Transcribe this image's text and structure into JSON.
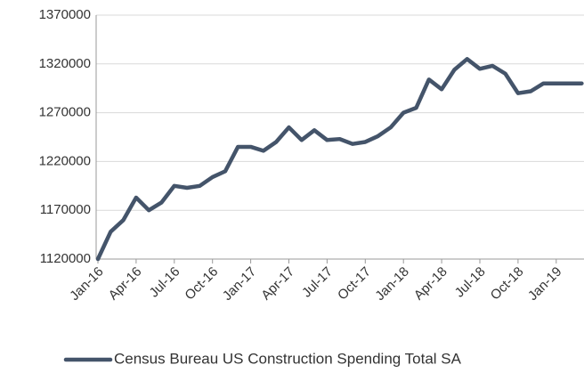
{
  "chart_data": {
    "type": "line",
    "categories": [
      "Jan-16",
      null,
      null,
      "Apr-16",
      null,
      null,
      "Jul-16",
      null,
      null,
      "Oct-16",
      null,
      null,
      "Jan-17",
      null,
      null,
      "Apr-17",
      null,
      null,
      "Jul-17",
      null,
      null,
      "Oct-17",
      null,
      null,
      "Jan-18",
      null,
      null,
      "Apr-18",
      null,
      null,
      "Jul-18",
      null,
      null,
      "Oct-18",
      null,
      null,
      "Jan-19",
      null,
      null
    ],
    "series": [
      {
        "name": "Census Bureau US Construction Spending Total SA",
        "color": "#44546a",
        "values": [
          1120000,
          1148000,
          1160000,
          1183000,
          1170000,
          1178000,
          1195000,
          1193000,
          1195000,
          1204000,
          1210000,
          1235000,
          1235000,
          1231000,
          1240000,
          1255000,
          1242000,
          1252000,
          1242000,
          1243000,
          1238000,
          1240000,
          1246000,
          1255000,
          1270000,
          1275000,
          1304000,
          1294000,
          1314000,
          1325000,
          1315000,
          1318000,
          1310000,
          1290000,
          1292000,
          1300000,
          1300000,
          1300000,
          1300000
        ]
      }
    ],
    "ylim": [
      1120000,
      1370000
    ],
    "yticks": [
      1120000,
      1170000,
      1220000,
      1270000,
      1320000,
      1370000
    ],
    "grid": true,
    "legend": "bottom"
  }
}
